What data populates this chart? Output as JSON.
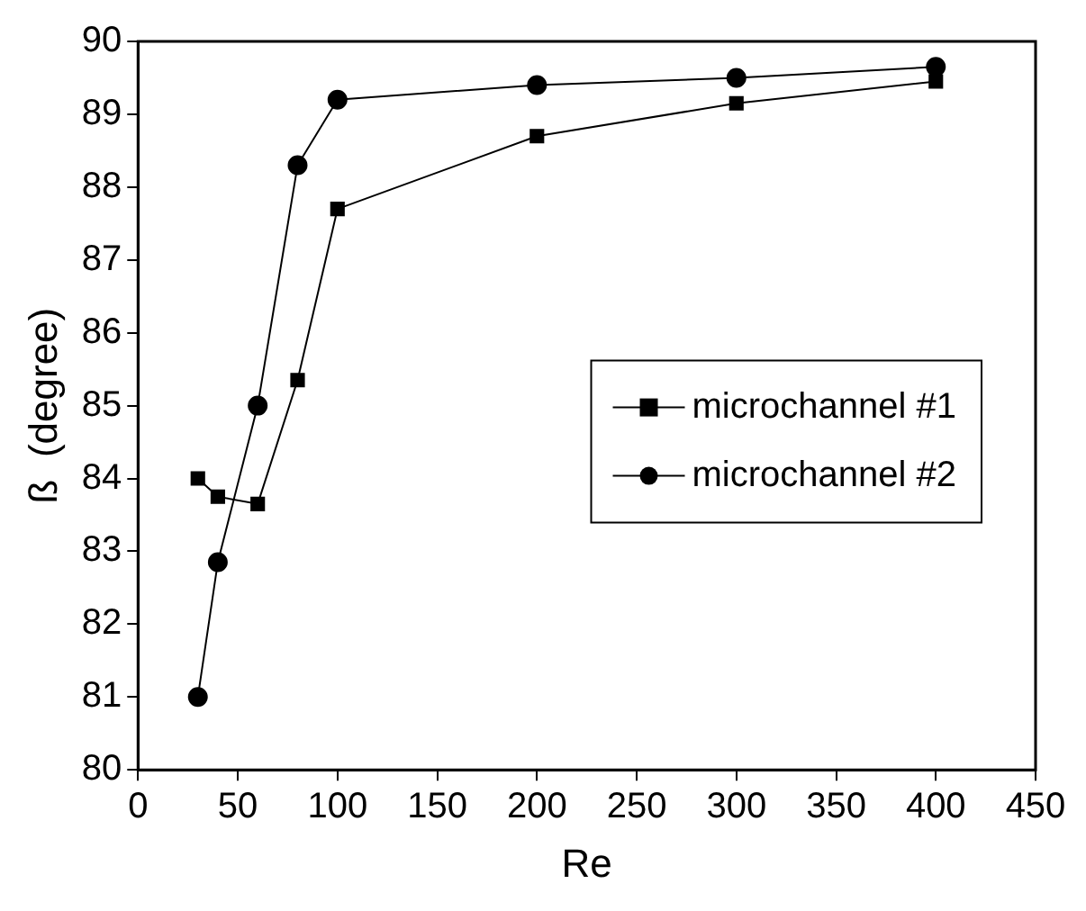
{
  "chart_data": {
    "type": "line",
    "xlabel": "Re",
    "ylabel": "ß  (degree)",
    "x": [
      30,
      40,
      60,
      80,
      100,
      200,
      300,
      400
    ],
    "series": [
      {
        "name": "microchannel #1",
        "color": "#000000",
        "marker": "square",
        "values": [
          84.0,
          83.75,
          83.65,
          85.35,
          87.7,
          88.7,
          89.15,
          89.45
        ]
      },
      {
        "name": "microchannel #2",
        "color": "#000000",
        "marker": "circle",
        "values": [
          81.0,
          82.85,
          85.0,
          88.3,
          89.2,
          89.4,
          89.5,
          89.65
        ]
      }
    ],
    "xlim": [
      0,
      450
    ],
    "xticks": [
      0,
      50,
      100,
      150,
      200,
      250,
      300,
      350,
      400,
      450
    ],
    "ylim": [
      80,
      90
    ],
    "yticks": [
      80,
      81,
      82,
      83,
      84,
      85,
      86,
      87,
      88,
      89,
      90
    ],
    "grid": false,
    "legend": "right",
    "line_style": "solid"
  }
}
